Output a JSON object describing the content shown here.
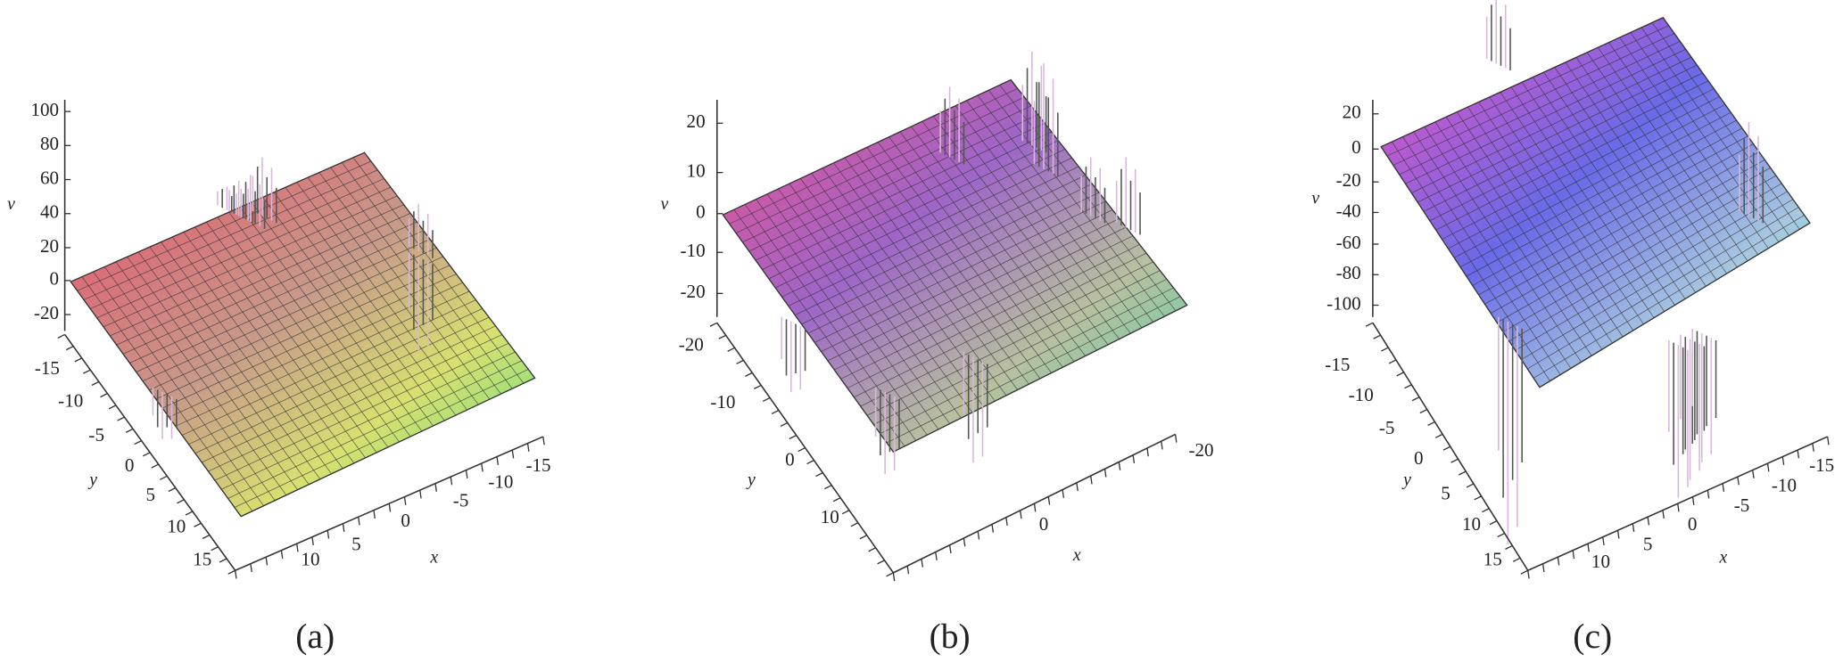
{
  "panels": [
    {
      "caption": "(a)",
      "v_label": "v",
      "y_label": "y",
      "x_label": "x",
      "v_ticks": [
        100,
        80,
        60,
        40,
        20,
        0,
        -20
      ],
      "y_ticks": [
        -15,
        -10,
        -5,
        0,
        5,
        10,
        15
      ],
      "x_ticks": [
        -15,
        -10,
        -5,
        0,
        5,
        10
      ]
    },
    {
      "caption": "(b)",
      "v_label": "v",
      "y_label": "y",
      "x_label": "x",
      "v_ticks": [
        20,
        10,
        0,
        -10,
        -20
      ],
      "y_ticks": [
        -20,
        -10,
        0,
        10
      ],
      "x_ticks": [
        -20,
        0
      ]
    },
    {
      "caption": "(c)",
      "v_label": "v",
      "y_label": "y",
      "x_label": "x",
      "v_ticks": [
        20,
        0,
        -20,
        -40,
        -60,
        -80,
        -100
      ],
      "y_ticks": [
        -15,
        -10,
        -5,
        0,
        5,
        10,
        15
      ],
      "x_ticks": [
        -15,
        -10,
        -5,
        0,
        5,
        10
      ]
    }
  ]
}
